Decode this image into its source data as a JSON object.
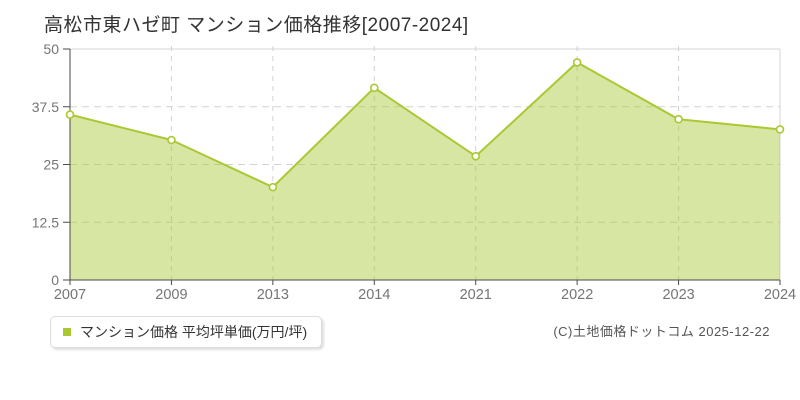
{
  "page": {
    "title": "高松市東ハゼ町 マンション価格推移[2007-2024]",
    "copyright": "(C)土地価格ドットコム 2025-12-22"
  },
  "legend": {
    "label": "マンション価格 平均坪単価(万円/坪)",
    "marker_color": "#a9c832"
  },
  "chart_data": {
    "type": "area",
    "title": "高松市東ハゼ町 マンション価格推移[2007-2024]",
    "categories": [
      "2007",
      "2009",
      "2013",
      "2014",
      "2021",
      "2022",
      "2023",
      "2024"
    ],
    "series": [
      {
        "name": "マンション価格 平均坪単価(万円/坪)",
        "values": [
          35.8,
          30.3,
          20.1,
          41.6,
          26.8,
          47.1,
          34.8,
          32.6
        ]
      }
    ],
    "xlabel": "",
    "ylabel": "平均坪単価(万円/坪)",
    "ylim": [
      0,
      50
    ],
    "yticks": [
      "0",
      "12.5",
      "25",
      "37.5",
      "50"
    ],
    "grid": true,
    "legend_position": "bottom-left",
    "colors": {
      "line": "#a9c832",
      "fill": "#a9c832",
      "fill_opacity": 0.45,
      "grid": "#d2d2d2",
      "border": "#d4d4d4",
      "axis": "#4a4a4a",
      "tick_label": "#757575",
      "marker_fill": "#ffffff"
    }
  }
}
